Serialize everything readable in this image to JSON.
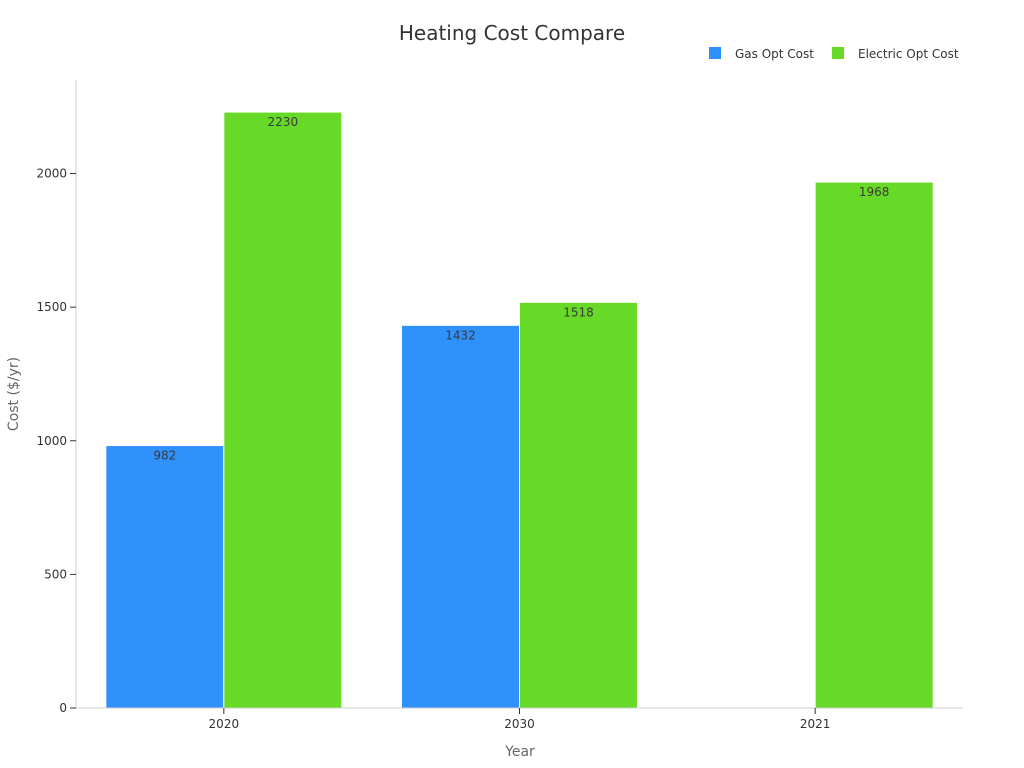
{
  "chart_data": {
    "type": "bar",
    "title": "Heating Cost Compare",
    "xlabel": "Year",
    "ylabel": "Cost ($/yr)",
    "categories": [
      "2020",
      "2030",
      "2021"
    ],
    "series": [
      {
        "name": "Gas Opt Cost",
        "color": "#2f91fb",
        "values": [
          982,
          1432,
          null
        ]
      },
      {
        "name": "Electric Opt Cost",
        "color": "#66da26",
        "values": [
          2230,
          1518,
          1968
        ]
      }
    ],
    "ylim": [
      0,
      2350
    ],
    "yticks": [
      0,
      500,
      1000,
      1500,
      2000
    ],
    "legend_position": "top-right",
    "grid": false
  }
}
